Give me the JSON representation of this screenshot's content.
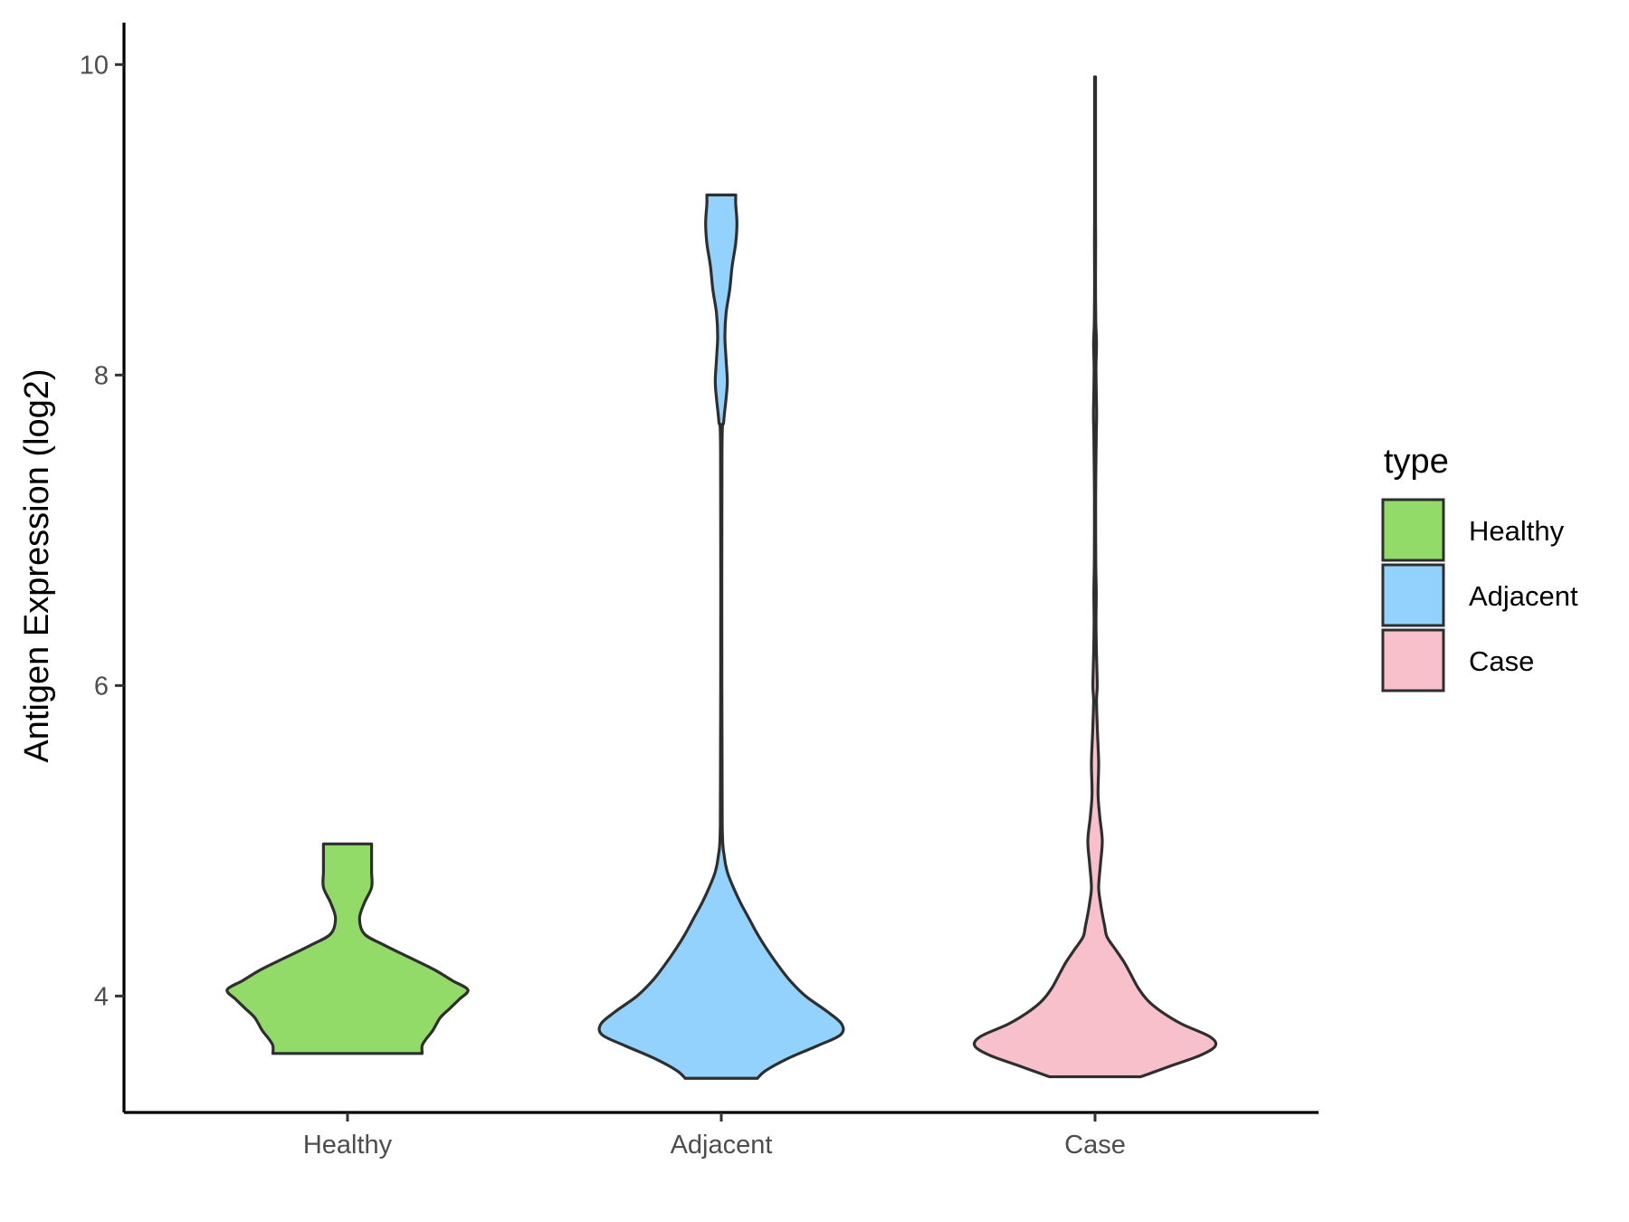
{
  "chart_data": {
    "type": "violin",
    "title": "",
    "xlabel": "",
    "ylabel": "Antigen Expression (log2)",
    "ylim": [
      3.25,
      10.27
    ],
    "yticks": [
      4,
      6,
      8,
      10
    ],
    "grid": false,
    "legend": {
      "title": "type",
      "placement": "right",
      "entries": [
        "Healthy",
        "Adjacent",
        "Case"
      ]
    },
    "categories": [
      "Healthy",
      "Adjacent",
      "Case"
    ],
    "series": [
      {
        "name": "Healthy",
        "color": "#93db69",
        "min": 3.63,
        "max": 4.98,
        "density": [
          [
            3.63,
            0.62
          ],
          [
            3.68,
            0.62
          ],
          [
            3.72,
            0.65
          ],
          [
            3.78,
            0.71
          ],
          [
            3.86,
            0.77
          ],
          [
            3.92,
            0.85
          ],
          [
            3.98,
            0.93
          ],
          [
            4.04,
            1.0
          ],
          [
            4.1,
            0.87
          ],
          [
            4.17,
            0.72
          ],
          [
            4.25,
            0.51
          ],
          [
            4.33,
            0.3
          ],
          [
            4.4,
            0.14
          ],
          [
            4.5,
            0.1
          ],
          [
            4.6,
            0.14
          ],
          [
            4.7,
            0.2
          ],
          [
            4.8,
            0.2
          ],
          [
            4.9,
            0.2
          ],
          [
            4.98,
            0.2
          ]
        ]
      },
      {
        "name": "Adjacent",
        "color": "#92d2fd",
        "min": 3.47,
        "max": 9.16,
        "density": [
          [
            3.47,
            0.3
          ],
          [
            3.52,
            0.37
          ],
          [
            3.6,
            0.56
          ],
          [
            3.68,
            0.8
          ],
          [
            3.75,
            0.99
          ],
          [
            3.82,
            1.0
          ],
          [
            3.9,
            0.88
          ],
          [
            4.0,
            0.7
          ],
          [
            4.1,
            0.57
          ],
          [
            4.2,
            0.47
          ],
          [
            4.3,
            0.38
          ],
          [
            4.4,
            0.3
          ],
          [
            4.5,
            0.23
          ],
          [
            4.6,
            0.16
          ],
          [
            4.7,
            0.1
          ],
          [
            4.8,
            0.05
          ],
          [
            4.9,
            0.025
          ],
          [
            5.1,
            0.008
          ],
          [
            6.0,
            0.005
          ],
          [
            7.5,
            0.006
          ],
          [
            7.7,
            0.02
          ],
          [
            7.85,
            0.04
          ],
          [
            7.96,
            0.05
          ],
          [
            8.1,
            0.04
          ],
          [
            8.25,
            0.03
          ],
          [
            8.4,
            0.04
          ],
          [
            8.55,
            0.07
          ],
          [
            8.7,
            0.09
          ],
          [
            8.85,
            0.12
          ],
          [
            8.98,
            0.13
          ],
          [
            9.1,
            0.12
          ],
          [
            9.16,
            0.12
          ]
        ]
      },
      {
        "name": "Case",
        "color": "#f7c0cb",
        "min": 3.48,
        "max": 9.92,
        "density": [
          [
            3.48,
            0.38
          ],
          [
            3.55,
            0.63
          ],
          [
            3.62,
            0.88
          ],
          [
            3.68,
            1.0
          ],
          [
            3.74,
            0.95
          ],
          [
            3.82,
            0.72
          ],
          [
            3.9,
            0.55
          ],
          [
            3.97,
            0.44
          ],
          [
            4.05,
            0.36
          ],
          [
            4.15,
            0.29
          ],
          [
            4.22,
            0.24
          ],
          [
            4.3,
            0.17
          ],
          [
            4.38,
            0.1
          ],
          [
            4.45,
            0.08
          ],
          [
            4.55,
            0.055
          ],
          [
            4.6,
            0.045
          ],
          [
            4.7,
            0.03
          ],
          [
            4.85,
            0.045
          ],
          [
            5.0,
            0.06
          ],
          [
            5.15,
            0.04
          ],
          [
            5.3,
            0.025
          ],
          [
            5.5,
            0.03
          ],
          [
            5.7,
            0.02
          ],
          [
            5.9,
            0.012
          ],
          [
            6.0,
            0.018
          ],
          [
            6.2,
            0.012
          ],
          [
            6.4,
            0.008
          ],
          [
            6.6,
            0.01
          ],
          [
            6.8,
            0.006
          ],
          [
            7.2,
            0.005
          ],
          [
            7.4,
            0.007
          ],
          [
            7.6,
            0.01
          ],
          [
            7.75,
            0.013
          ],
          [
            7.9,
            0.01
          ],
          [
            8.05,
            0.008
          ],
          [
            8.2,
            0.012
          ],
          [
            8.35,
            0.006
          ],
          [
            8.6,
            0.003
          ],
          [
            8.85,
            0.005
          ],
          [
            9.0,
            0.003
          ],
          [
            9.2,
            0.003
          ],
          [
            9.5,
            0.002
          ],
          [
            9.8,
            0.002
          ],
          [
            9.92,
            0.004
          ]
        ]
      }
    ]
  }
}
